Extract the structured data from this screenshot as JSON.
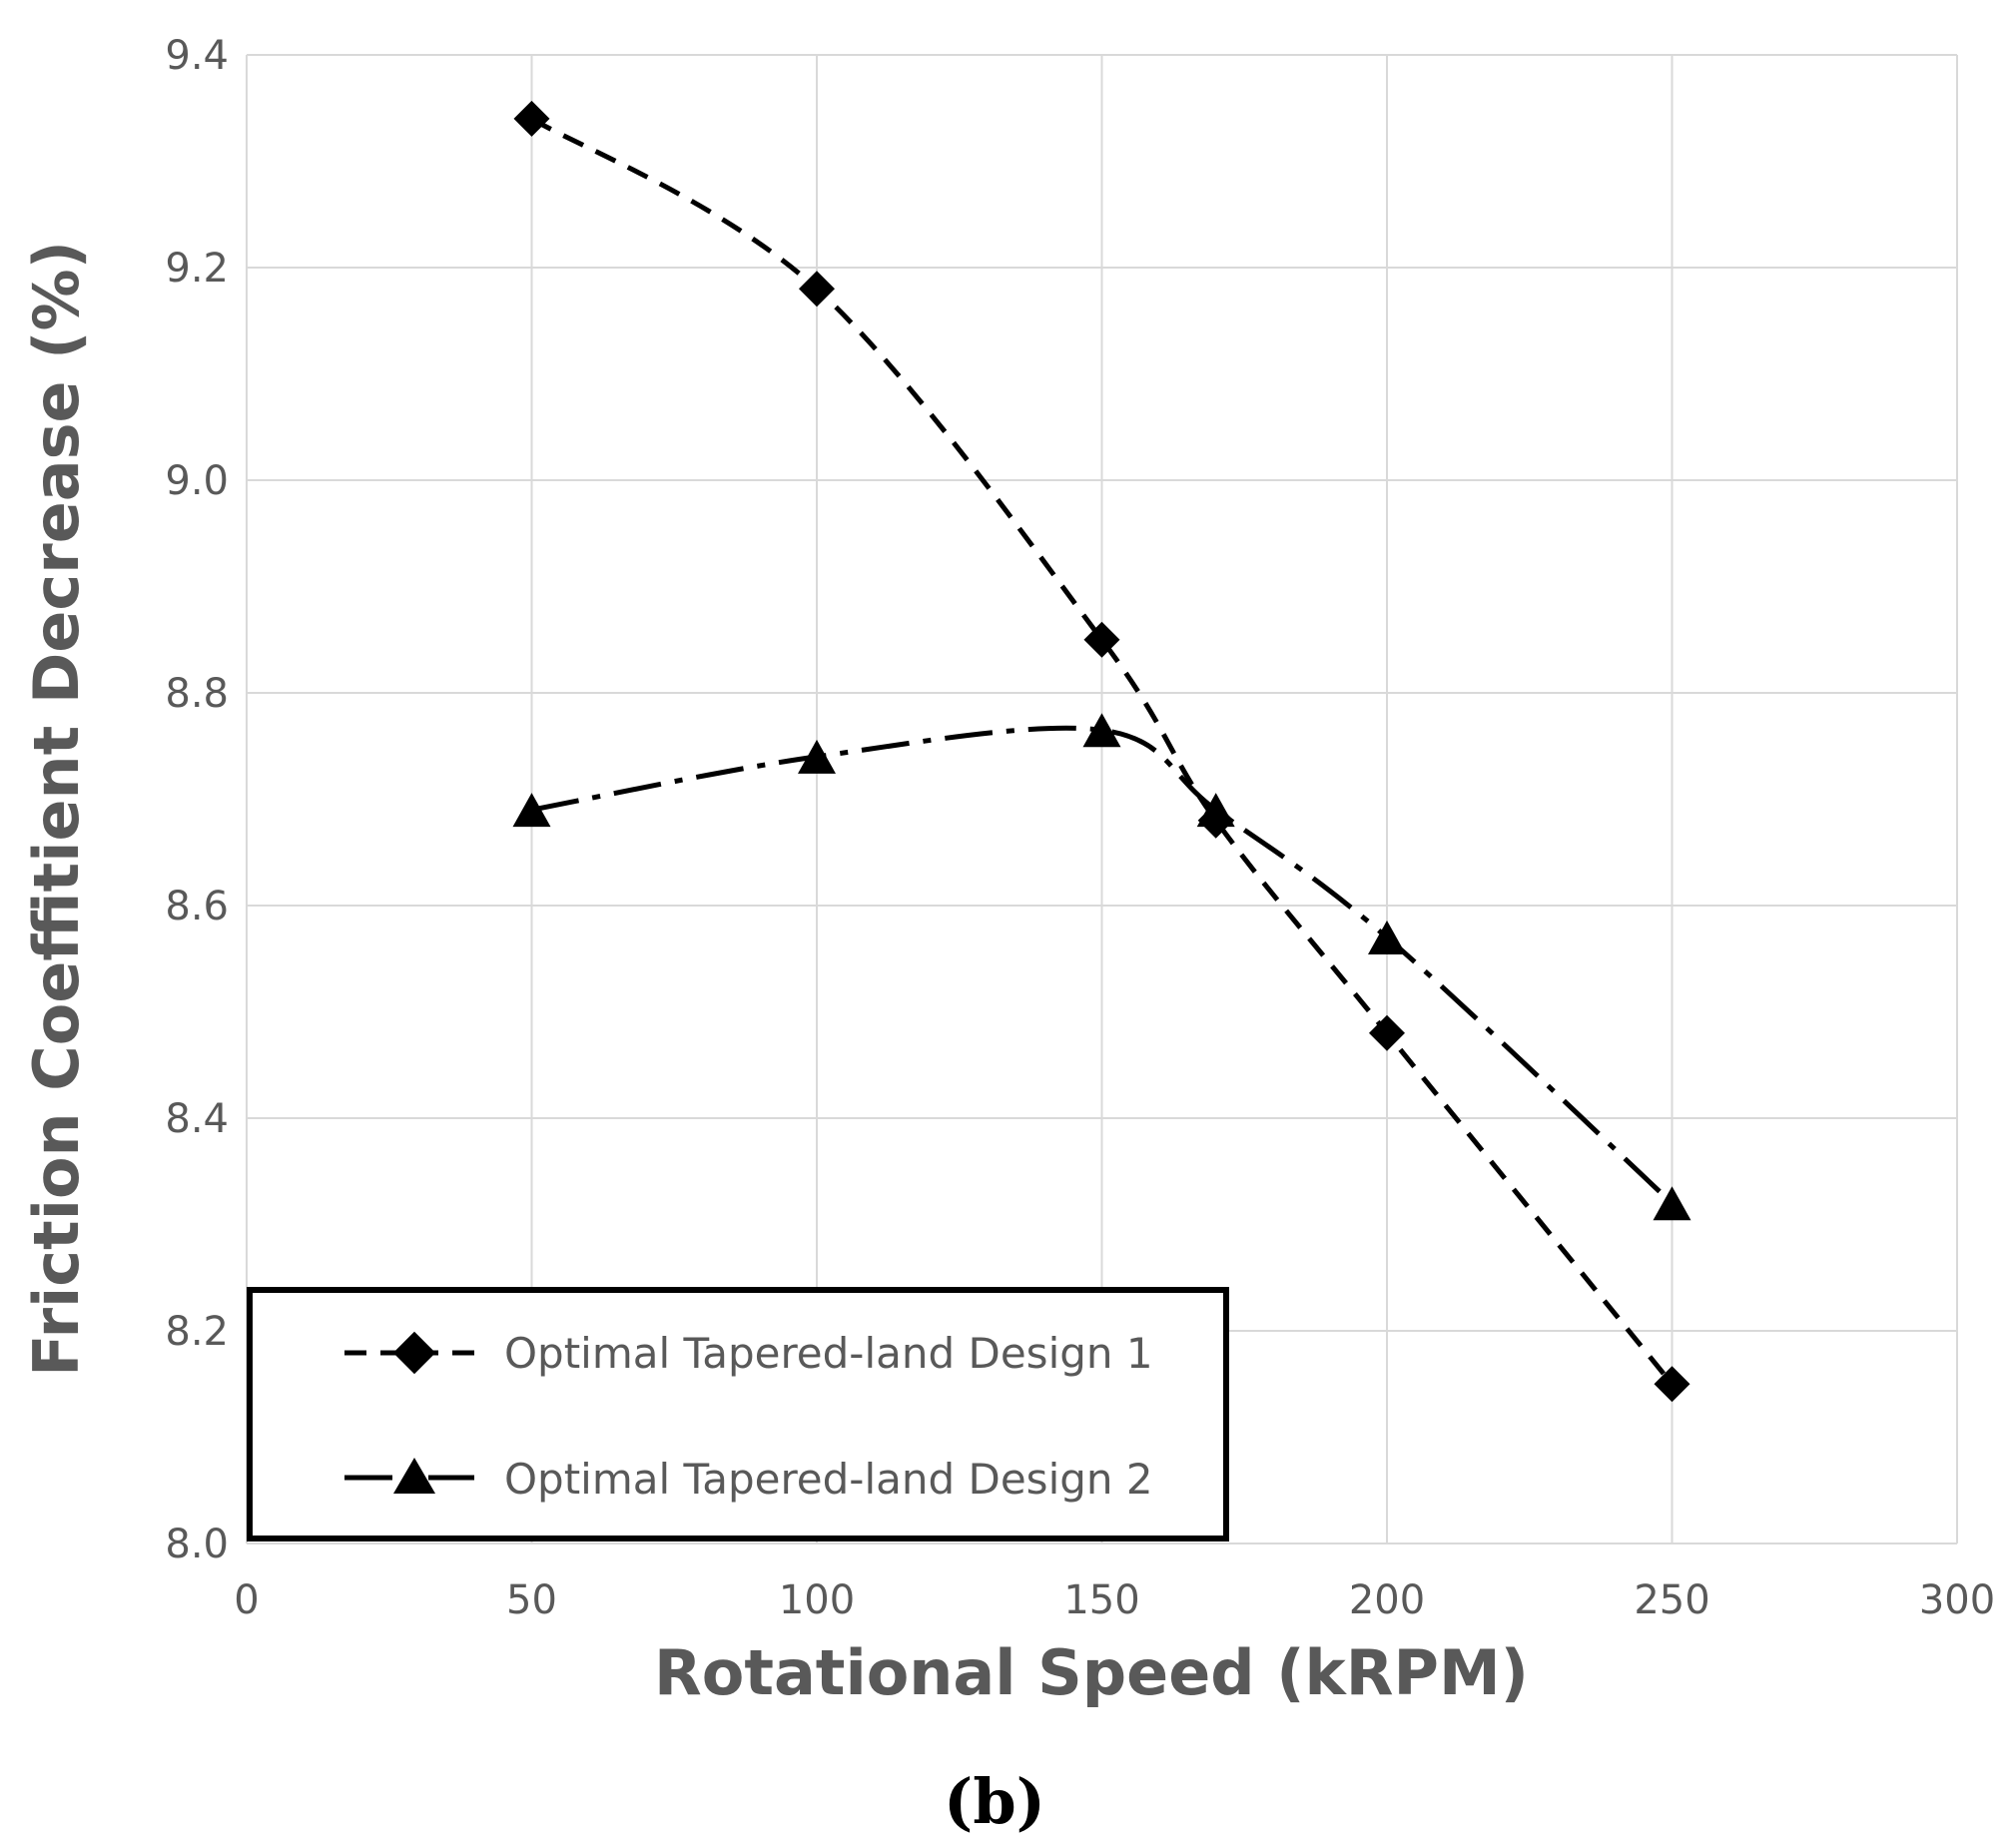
{
  "chart_data": {
    "type": "line",
    "title": "",
    "xlabel": "Rotational Speed (kRPM)",
    "ylabel": "Friction Coeffitient Decrease (%)",
    "caption": "(b)",
    "xlim": [
      0,
      300
    ],
    "ylim": [
      8.0,
      9.4
    ],
    "x_ticks": [
      0,
      50,
      100,
      150,
      200,
      250,
      300
    ],
    "y_ticks": [
      8.0,
      8.2,
      8.4,
      8.6,
      8.8,
      9.0,
      9.2,
      9.4
    ],
    "x_tick_labels": [
      "0",
      "50",
      "100",
      "150",
      "200",
      "250",
      "300"
    ],
    "y_tick_labels": [
      "8.0",
      "8.2",
      "8.4",
      "8.6",
      "8.8",
      "9.0",
      "9.2",
      "9.4"
    ],
    "grid": true,
    "legend_position": "bottom-left",
    "series": [
      {
        "name": "Optimal Tapered-land Design 1",
        "marker": "diamond",
        "line_style": "dashed",
        "color": "#000000",
        "x": [
          50,
          100,
          150,
          170,
          200,
          250
        ],
        "values": [
          9.34,
          9.18,
          8.85,
          8.68,
          8.48,
          8.15
        ]
      },
      {
        "name": "Optimal Tapered-land Design 2",
        "marker": "triangle",
        "line_style": "dash-dot",
        "color": "#000000",
        "x": [
          50,
          100,
          150,
          170,
          200,
          250
        ],
        "values": [
          8.69,
          8.74,
          8.765,
          8.69,
          8.57,
          8.32
        ]
      }
    ]
  }
}
